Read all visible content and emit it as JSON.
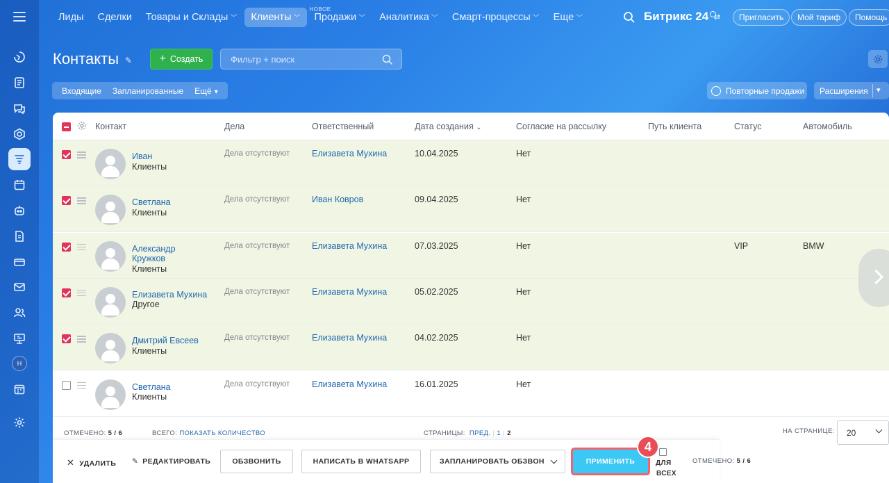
{
  "nav": {
    "items": [
      {
        "label": "Лиды",
        "chevron": false,
        "active": false
      },
      {
        "label": "Сделки",
        "chevron": false,
        "active": false
      },
      {
        "label": "Товары и Склады",
        "chevron": true,
        "active": false
      },
      {
        "label": "Клиенты",
        "chevron": true,
        "active": true
      },
      {
        "label": "Продажи",
        "chevron": true,
        "active": false,
        "tag": "НОВОЕ"
      },
      {
        "label": "Аналитика",
        "chevron": true,
        "active": false
      },
      {
        "label": "Смарт-процессы",
        "chevron": true,
        "active": false
      },
      {
        "label": "Еще",
        "chevron": true,
        "active": false
      }
    ],
    "brand": "Битрикс 24",
    "invite": "Пригласить",
    "tariff": "Мой тариф",
    "help": "Помощь"
  },
  "rail": {
    "avatar_initial": "Н"
  },
  "header": {
    "title": "Контакты",
    "create_label": "Создать",
    "filter_placeholder": "Фильтр + поиск"
  },
  "subtabs": {
    "incoming": "Входящие",
    "planned": "Запланированные",
    "more": "Ещё",
    "repeat_sales": "Повторные продажи",
    "extensions": "Расширения"
  },
  "columns": {
    "contact": "Контакт",
    "deals": "Дела",
    "responsible": "Ответственный",
    "created": "Дата создания",
    "consent": "Согласие на рассылку",
    "path": "Путь клиента",
    "status": "Статус",
    "car": "Автомобиль"
  },
  "rows": [
    {
      "name": "Иван",
      "type": "Клиенты",
      "deals": "Дела отсутствуют",
      "responsible": "Елизавета Мухина",
      "date": "10.04.2025",
      "consent": "Нет",
      "status": "",
      "car": "",
      "checked": true
    },
    {
      "name": "Светлана",
      "type": "Клиенты",
      "deals": "Дела отсутствуют",
      "responsible": "Иван Ковров",
      "date": "09.04.2025",
      "consent": "Нет",
      "status": "",
      "car": "",
      "checked": true
    },
    {
      "name": "Александр Кружков",
      "type": "Клиенты",
      "deals": "Дела отсутствуют",
      "responsible": "Елизавета Мухина",
      "date": "07.03.2025",
      "consent": "Нет",
      "status": "VIP",
      "car": "BMW",
      "checked": true
    },
    {
      "name": "Елизавета Мухина",
      "type": "Другое",
      "deals": "Дела отсутствуют",
      "responsible": "Елизавета Мухина",
      "date": "05.02.2025",
      "consent": "Нет",
      "status": "",
      "car": "",
      "checked": true
    },
    {
      "name": "Дмитрий Евсеев",
      "type": "Клиенты",
      "deals": "Дела отсутствуют",
      "responsible": "Елизавета Мухина",
      "date": "04.02.2025",
      "consent": "Нет",
      "status": "",
      "car": "",
      "checked": true
    },
    {
      "name": "Светлана",
      "type": "Клиенты",
      "deals": "Дела отсутствуют",
      "responsible": "Елизавета Мухина",
      "date": "16.01.2025",
      "consent": "Нет",
      "status": "",
      "car": "",
      "checked": false
    }
  ],
  "footer": {
    "marked_label": "ОТМЕЧЕНО:",
    "marked_value": "5 / 6",
    "total_label": "ВСЕГО:",
    "total_link": "ПОКАЗАТЬ КОЛИЧЕСТВО",
    "pages_label": "СТРАНИЦЫ:",
    "prev": "ПРЕД.",
    "page1": "1",
    "page2": "2",
    "per_page_label": "НА СТРАНИЦЕ:",
    "per_page_value": "20"
  },
  "actions": {
    "delete": "УДАЛИТЬ",
    "edit": "РЕДАКТИРОВАТЬ",
    "call": "ОБЗВОНИТЬ",
    "whatsapp": "НАПИСАТЬ В WHATSAPP",
    "schedule": "ЗАПЛАНИРОВАТЬ ОБЗВОН",
    "apply": "ПРИМЕНИТЬ",
    "step_badge": "4",
    "for_all_line1": "ДЛЯ",
    "for_all_line2": "ВСЕХ",
    "marked_label": "ОТМЕЧЕНО:",
    "marked_value": "5 / 6"
  }
}
